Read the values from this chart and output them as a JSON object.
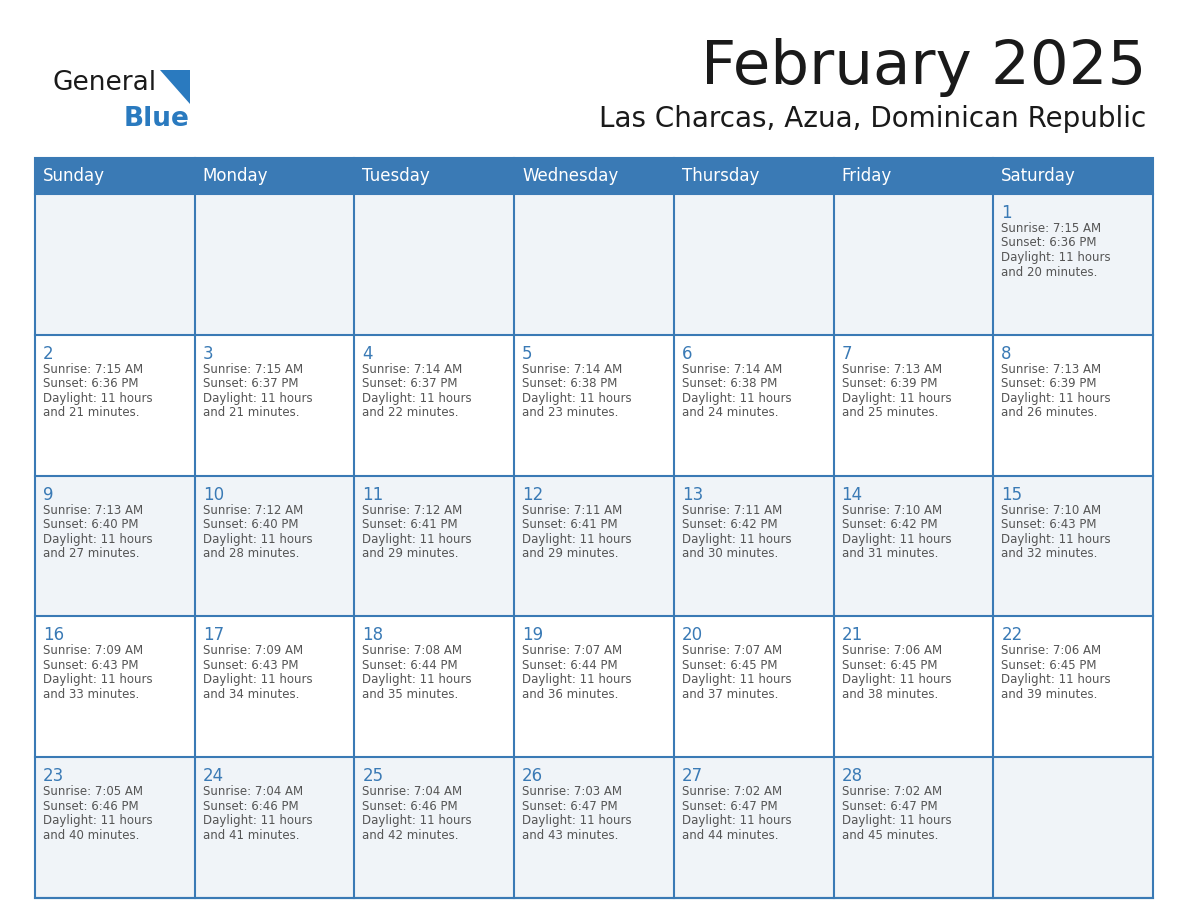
{
  "title": "February 2025",
  "subtitle": "Las Charcas, Azua, Dominican Republic",
  "days_of_week": [
    "Sunday",
    "Monday",
    "Tuesday",
    "Wednesday",
    "Thursday",
    "Friday",
    "Saturday"
  ],
  "header_bg": "#3a7ab5",
  "header_text": "#ffffff",
  "cell_bg_white": "#ffffff",
  "cell_bg_gray": "#f0f4f8",
  "border_color": "#3a7ab5",
  "day_num_color": "#3a7ab5",
  "cell_text_color": "#555555",
  "title_color": "#1a1a1a",
  "subtitle_color": "#1a1a1a",
  "logo_general_color": "#1a1a1a",
  "logo_blue_color": "#2a7abf",
  "background": "#ffffff",
  "calendar_data": {
    "1": {
      "sunrise": "7:15 AM",
      "sunset": "6:36 PM",
      "daylight": "11 hours and 20 minutes."
    },
    "2": {
      "sunrise": "7:15 AM",
      "sunset": "6:36 PM",
      "daylight": "11 hours and 21 minutes."
    },
    "3": {
      "sunrise": "7:15 AM",
      "sunset": "6:37 PM",
      "daylight": "11 hours and 21 minutes."
    },
    "4": {
      "sunrise": "7:14 AM",
      "sunset": "6:37 PM",
      "daylight": "11 hours and 22 minutes."
    },
    "5": {
      "sunrise": "7:14 AM",
      "sunset": "6:38 PM",
      "daylight": "11 hours and 23 minutes."
    },
    "6": {
      "sunrise": "7:14 AM",
      "sunset": "6:38 PM",
      "daylight": "11 hours and 24 minutes."
    },
    "7": {
      "sunrise": "7:13 AM",
      "sunset": "6:39 PM",
      "daylight": "11 hours and 25 minutes."
    },
    "8": {
      "sunrise": "7:13 AM",
      "sunset": "6:39 PM",
      "daylight": "11 hours and 26 minutes."
    },
    "9": {
      "sunrise": "7:13 AM",
      "sunset": "6:40 PM",
      "daylight": "11 hours and 27 minutes."
    },
    "10": {
      "sunrise": "7:12 AM",
      "sunset": "6:40 PM",
      "daylight": "11 hours and 28 minutes."
    },
    "11": {
      "sunrise": "7:12 AM",
      "sunset": "6:41 PM",
      "daylight": "11 hours and 29 minutes."
    },
    "12": {
      "sunrise": "7:11 AM",
      "sunset": "6:41 PM",
      "daylight": "11 hours and 29 minutes."
    },
    "13": {
      "sunrise": "7:11 AM",
      "sunset": "6:42 PM",
      "daylight": "11 hours and 30 minutes."
    },
    "14": {
      "sunrise": "7:10 AM",
      "sunset": "6:42 PM",
      "daylight": "11 hours and 31 minutes."
    },
    "15": {
      "sunrise": "7:10 AM",
      "sunset": "6:43 PM",
      "daylight": "11 hours and 32 minutes."
    },
    "16": {
      "sunrise": "7:09 AM",
      "sunset": "6:43 PM",
      "daylight": "11 hours and 33 minutes."
    },
    "17": {
      "sunrise": "7:09 AM",
      "sunset": "6:43 PM",
      "daylight": "11 hours and 34 minutes."
    },
    "18": {
      "sunrise": "7:08 AM",
      "sunset": "6:44 PM",
      "daylight": "11 hours and 35 minutes."
    },
    "19": {
      "sunrise": "7:07 AM",
      "sunset": "6:44 PM",
      "daylight": "11 hours and 36 minutes."
    },
    "20": {
      "sunrise": "7:07 AM",
      "sunset": "6:45 PM",
      "daylight": "11 hours and 37 minutes."
    },
    "21": {
      "sunrise": "7:06 AM",
      "sunset": "6:45 PM",
      "daylight": "11 hours and 38 minutes."
    },
    "22": {
      "sunrise": "7:06 AM",
      "sunset": "6:45 PM",
      "daylight": "11 hours and 39 minutes."
    },
    "23": {
      "sunrise": "7:05 AM",
      "sunset": "6:46 PM",
      "daylight": "11 hours and 40 minutes."
    },
    "24": {
      "sunrise": "7:04 AM",
      "sunset": "6:46 PM",
      "daylight": "11 hours and 41 minutes."
    },
    "25": {
      "sunrise": "7:04 AM",
      "sunset": "6:46 PM",
      "daylight": "11 hours and 42 minutes."
    },
    "26": {
      "sunrise": "7:03 AM",
      "sunset": "6:47 PM",
      "daylight": "11 hours and 43 minutes."
    },
    "27": {
      "sunrise": "7:02 AM",
      "sunset": "6:47 PM",
      "daylight": "11 hours and 44 minutes."
    },
    "28": {
      "sunrise": "7:02 AM",
      "sunset": "6:47 PM",
      "daylight": "11 hours and 45 minutes."
    }
  }
}
